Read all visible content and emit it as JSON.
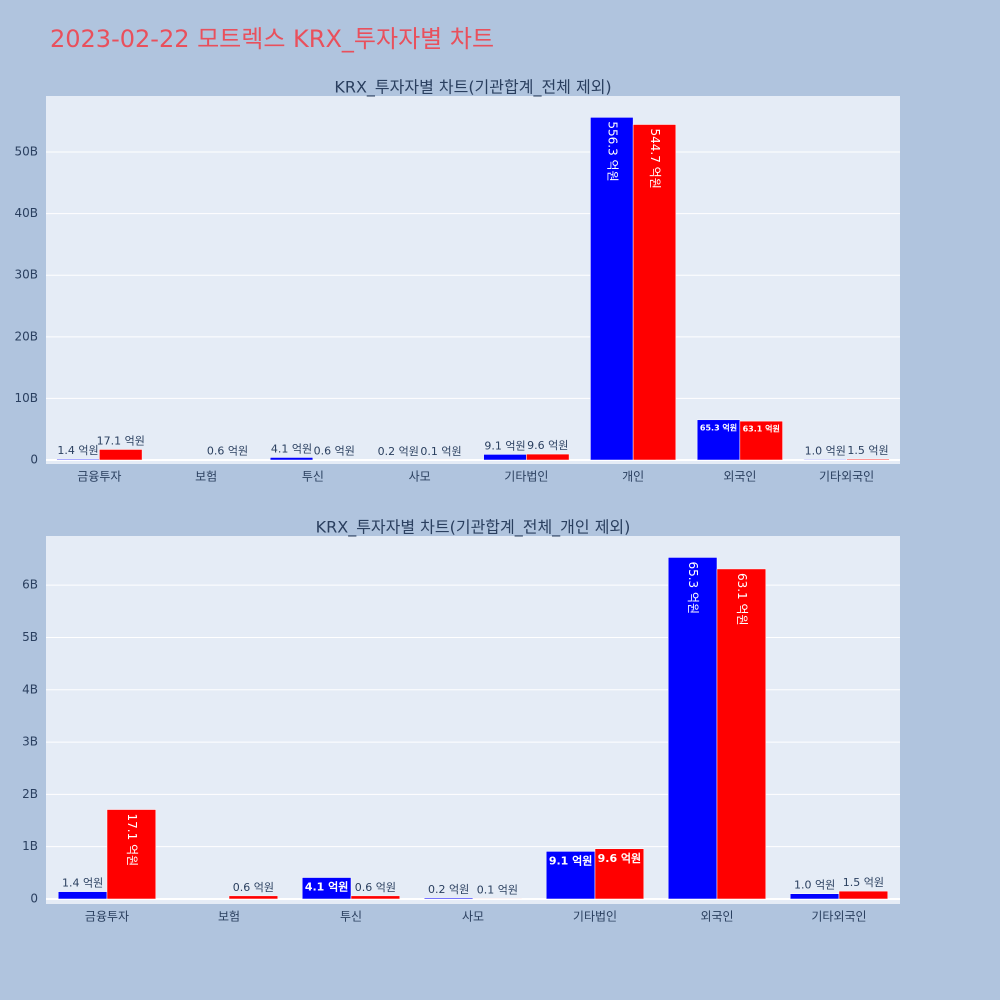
{
  "title": "2023-02-22 모트렉스 KRX_투자자별 차트",
  "chart_data": [
    {
      "type": "bar",
      "title": "KRX_투자자별 차트(기관합계_전체 제외)",
      "categories": [
        "금융투자",
        "보험",
        "투신",
        "사모",
        "기타법인",
        "개인",
        "외국인",
        "기타외국인"
      ],
      "series": [
        {
          "color": "#0000ff",
          "values": [
            140000000,
            null,
            410000000,
            20000000,
            910000000,
            55630000000,
            6530000000,
            100000000
          ],
          "value_labels": [
            "1.4 억원",
            null,
            "4.1 억원",
            "0.2 억원",
            "9.1 억원",
            "556.3 억원",
            "65.3 억원",
            "1.0 억원"
          ]
        },
        {
          "color": "#ff0000",
          "values": [
            1710000000,
            60000000,
            60000000,
            10000000,
            960000000,
            54470000000,
            6310000000,
            150000000
          ],
          "value_labels": [
            "17.1 억원",
            "0.6 억원",
            "0.6 억원",
            "0.1 억원",
            "9.6 억원",
            "544.7 억원",
            "63.1 억원",
            "1.5 억원"
          ]
        }
      ],
      "ylim": [
        -650000000,
        59100000000
      ],
      "yticks": [
        0,
        {
          "value": 10000000000,
          "label": "10B"
        },
        {
          "value": 20000000000,
          "label": "20B"
        },
        {
          "value": 30000000000,
          "label": "30B"
        },
        {
          "value": 40000000000,
          "label": "40B"
        },
        {
          "value": 50000000000,
          "label": "50B"
        }
      ],
      "grid": true
    },
    {
      "type": "bar",
      "title": "KRX_투자자별 차트(기관합계_전체_개인 제외)",
      "categories": [
        "금융투자",
        "보험",
        "투신",
        "사모",
        "기타법인",
        "외국인",
        "기타외국인"
      ],
      "series": [
        {
          "color": "#0000ff",
          "values": [
            140000000,
            null,
            410000000,
            20000000,
            910000000,
            6530000000,
            100000000
          ],
          "value_labels": [
            "1.4 억원",
            null,
            "4.1 억원",
            "0.2 억원",
            "9.1 억원",
            "65.3 억원",
            "1.0 억원"
          ]
        },
        {
          "color": "#ff0000",
          "values": [
            1710000000,
            60000000,
            60000000,
            10000000,
            960000000,
            6310000000,
            150000000
          ],
          "value_labels": [
            "17.1 억원",
            "0.6 억원",
            "0.6 억원",
            "0.1 억원",
            "9.6 억원",
            "63.1 억원",
            "1.5 억원"
          ]
        }
      ],
      "ylim": [
        -96000000,
        6940000000
      ],
      "yticks": [
        0,
        {
          "value": 1000000000,
          "label": "1B"
        },
        {
          "value": 2000000000,
          "label": "2B"
        },
        {
          "value": 3000000000,
          "label": "3B"
        },
        {
          "value": 4000000000,
          "label": "4B"
        },
        {
          "value": 5000000000,
          "label": "5B"
        },
        {
          "value": 6000000000,
          "label": "6B"
        }
      ],
      "grid": true
    }
  ]
}
